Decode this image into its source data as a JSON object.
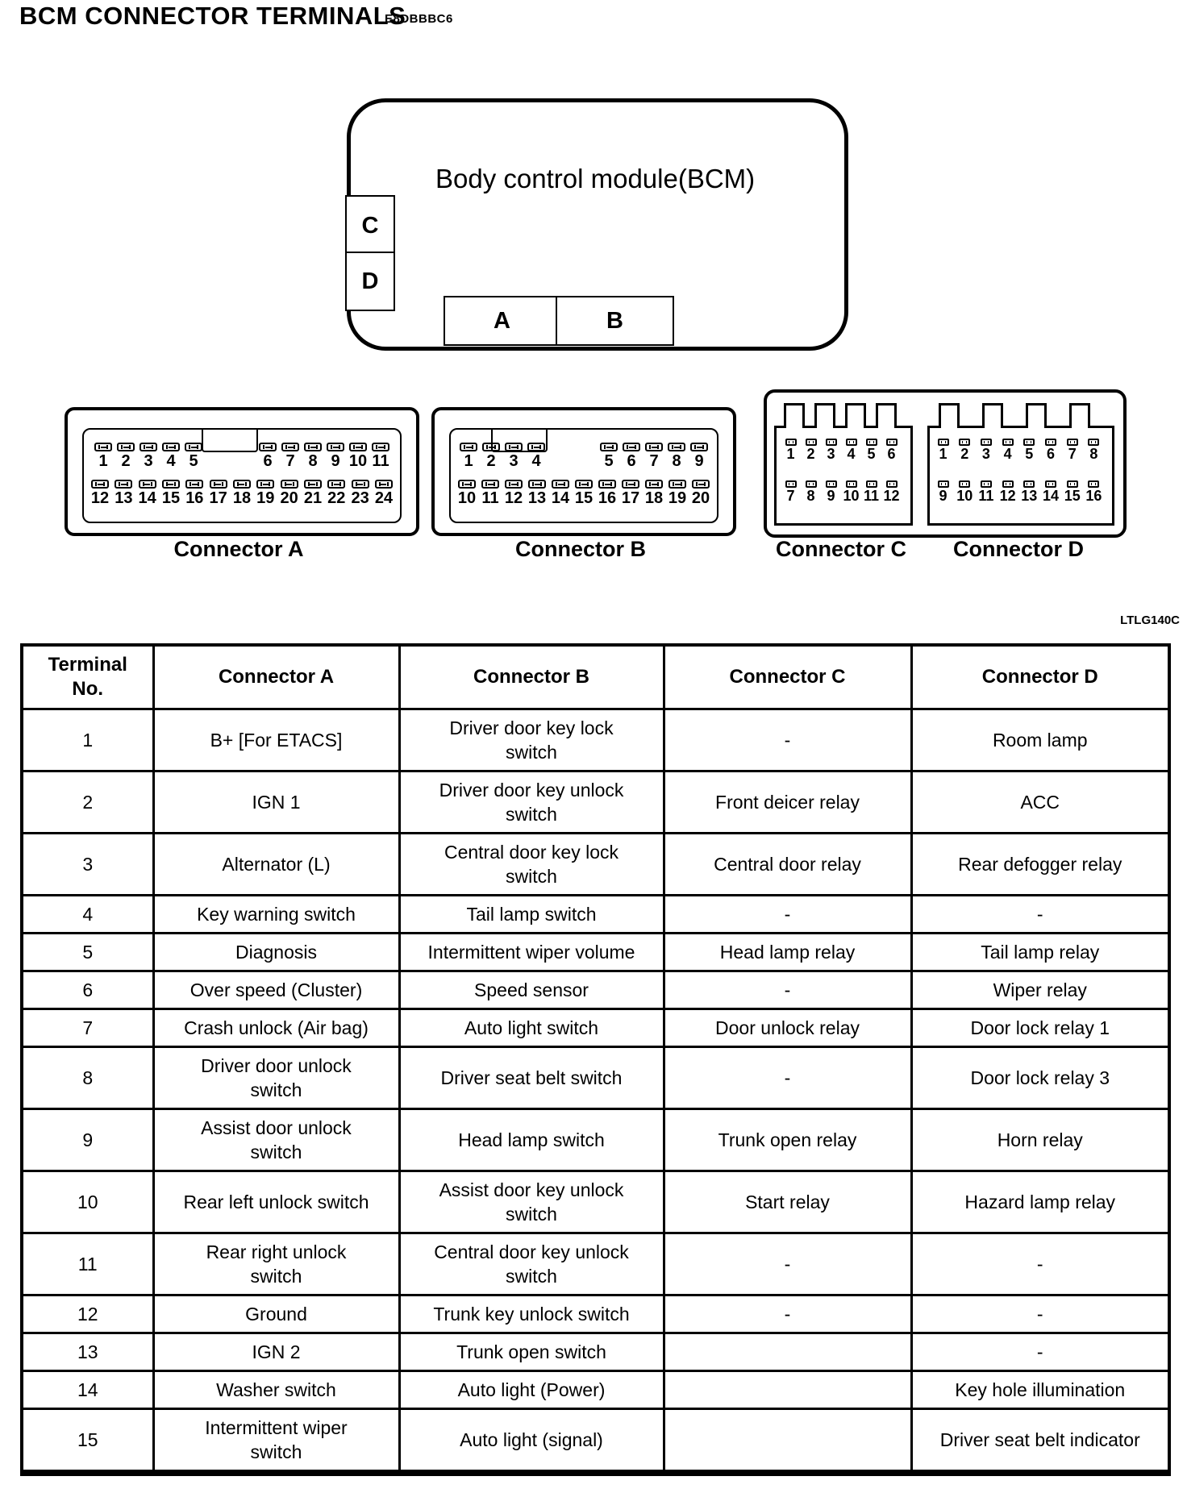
{
  "page": {
    "title": "BCM CONNECTOR TERMINALS",
    "title_code": "E8DBBBC6",
    "figure_code": "LTLG140C"
  },
  "bcm_diagram": {
    "label": "Body control module(BCM)",
    "side_c": "C",
    "side_d": "D",
    "bottom_a": "A",
    "bottom_b": "B"
  },
  "connector_a": {
    "label": "Connector A",
    "row1_left": [
      "1",
      "2",
      "3",
      "4",
      "5"
    ],
    "row1_right": [
      "6",
      "7",
      "8",
      "9",
      "10",
      "11"
    ],
    "row2": [
      "12",
      "13",
      "14",
      "15",
      "16",
      "17",
      "18",
      "19",
      "20",
      "21",
      "22",
      "23",
      "24"
    ]
  },
  "connector_b": {
    "label": "Connector B",
    "row1_left": [
      "1",
      "2",
      "3",
      "4"
    ],
    "row1_right": [
      "5",
      "6",
      "7",
      "8",
      "9"
    ],
    "row2": [
      "10",
      "11",
      "12",
      "13",
      "14",
      "15",
      "16",
      "17",
      "18",
      "19",
      "20"
    ]
  },
  "connector_c": {
    "label": "Connector C",
    "row1": [
      "1",
      "2",
      "3",
      "4",
      "5",
      "6"
    ],
    "row2": [
      "7",
      "8",
      "9",
      "10",
      "11",
      "12"
    ]
  },
  "connector_d": {
    "label": "Connector D",
    "row1": [
      "1",
      "2",
      "3",
      "4",
      "5",
      "6",
      "7",
      "8"
    ],
    "row2": [
      "9",
      "10",
      "11",
      "12",
      "13",
      "14",
      "15",
      "16"
    ]
  },
  "table": {
    "headers": [
      "Terminal\nNo.",
      "Connector A",
      "Connector B",
      "Connector C",
      "Connector D"
    ],
    "rows": [
      [
        "1",
        "B+ [For ETACS]",
        "Driver door key lock\nswitch",
        "-",
        "Room lamp"
      ],
      [
        "2",
        "IGN 1",
        "Driver door key unlock\nswitch",
        "Front deicer relay",
        "ACC"
      ],
      [
        "3",
        "Alternator (L)",
        "Central door key lock\nswitch",
        "Central door relay",
        "Rear defogger relay"
      ],
      [
        "4",
        "Key warning switch",
        "Tail lamp switch",
        "-",
        "-"
      ],
      [
        "5",
        "Diagnosis",
        "Intermittent wiper volume",
        "Head lamp relay",
        "Tail lamp relay"
      ],
      [
        "6",
        "Over speed (Cluster)",
        "Speed sensor",
        "-",
        "Wiper relay"
      ],
      [
        "7",
        "Crash unlock (Air bag)",
        "Auto light switch",
        "Door unlock relay",
        "Door lock relay 1"
      ],
      [
        "8",
        "Driver door unlock\nswitch",
        "Driver seat belt switch",
        "-",
        "Door lock relay 3"
      ],
      [
        "9",
        "Assist door unlock\nswitch",
        "Head lamp switch",
        "Trunk open relay",
        "Horn relay"
      ],
      [
        "10",
        "Rear left unlock switch",
        "Assist door key unlock\nswitch",
        "Start relay",
        "Hazard lamp relay"
      ],
      [
        "11",
        "Rear right unlock\nswitch",
        "Central door key unlock\nswitch",
        "-",
        "-"
      ],
      [
        "12",
        "Ground",
        "Trunk key unlock switch",
        "-",
        "-"
      ],
      [
        "13",
        "IGN 2",
        "Trunk open switch",
        "",
        "-"
      ],
      [
        "14",
        "Washer switch",
        "Auto light (Power)",
        "",
        "Key hole illumination"
      ],
      [
        "15",
        "Intermittent wiper\nswitch",
        "Auto light (signal)",
        "",
        "Driver seat belt indicator"
      ]
    ]
  }
}
